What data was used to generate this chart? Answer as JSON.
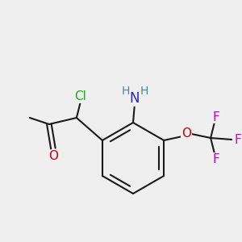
{
  "bg_color": "#efefef",
  "bond_color": "#1a1a1a",
  "atom_colors": {
    "Cl": "#22aa22",
    "N": "#2222dd",
    "O": "#cc0000",
    "F": "#cc00cc",
    "H": "#4488aa",
    "C": "#1a1a1a"
  },
  "font_size_atom": 11,
  "font_size_small": 10,
  "font_size_label": 9.5
}
